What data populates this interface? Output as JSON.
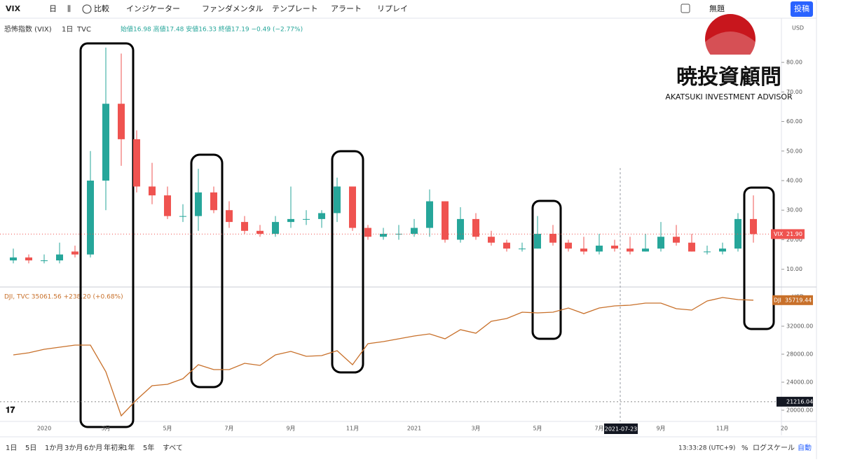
{
  "toolbar": {
    "symbol": "VIX",
    "interval": "日",
    "compare": "比較",
    "indicators": "インジケーター",
    "fundamental": "ファンダメンタル",
    "template": "テンプレート",
    "alert": "アラート",
    "replay": "リプレイ",
    "layout": "無題",
    "publish": "投稿"
  },
  "legend": {
    "title": "恐怖指数 (VIX)",
    "interval": "1日",
    "source": "TVC",
    "ohlc": "始値16.98 高値17.48 安値16.33 終値17.19 −0.49 (−2.77%)",
    "dji": "DJI, TVC 35061.56 +238.20 (+0.68%)"
  },
  "logo": {
    "kanji": "暁投資顧問",
    "name": "AKATSUKI INVESTMENT ADVISOR"
  },
  "price_labels": {
    "currency_top": "USD",
    "currency_bottom": "USD",
    "vix_name": "VIX",
    "vix_last": "21.90",
    "dji_name": "DJI",
    "dji_last": "35719.44",
    "marker": "21216.04",
    "crosshair_date": "2021-07-23"
  },
  "chart_data": [
    {
      "type": "candlestick",
      "name": "VIX",
      "categories": [
        null,
        null,
        "2020",
        null,
        null,
        null,
        "3月",
        null,
        null,
        null,
        "5月",
        null,
        null,
        null,
        "7月",
        null,
        null,
        null,
        "9月",
        null,
        null,
        null,
        "11月",
        null,
        null,
        null,
        "2021",
        null,
        null,
        null,
        "3月",
        null,
        null,
        null,
        "5月",
        null,
        null,
        null,
        "7月",
        null,
        null,
        null,
        "9月",
        null,
        null,
        null,
        "11月",
        null,
        null,
        null,
        "20"
      ],
      "open": [
        13,
        14,
        13,
        13,
        16,
        15,
        40,
        66,
        54,
        38,
        35,
        28,
        28,
        36,
        30,
        26,
        23,
        22,
        26,
        27,
        27,
        29,
        38,
        24,
        21,
        22,
        22,
        24,
        33,
        20,
        27,
        21,
        19,
        17,
        17,
        22,
        19,
        17,
        16,
        18,
        17,
        16,
        17,
        21,
        19,
        16,
        16,
        17,
        27,
        null,
        null
      ],
      "high": [
        17,
        15,
        15,
        19,
        18,
        50,
        85,
        83,
        57,
        46,
        38,
        32,
        44,
        38,
        33,
        28,
        25,
        28,
        38,
        30,
        30,
        41,
        38,
        25,
        24,
        25,
        27,
        37,
        33,
        31,
        29,
        23,
        20,
        19,
        28,
        25,
        20,
        21,
        22,
        20,
        21,
        22,
        26,
        25,
        22,
        18,
        19,
        29,
        35,
        null,
        null
      ],
      "low": [
        12,
        12,
        12,
        12,
        14,
        14,
        30,
        45,
        36,
        32,
        27,
        26,
        23,
        29,
        24,
        22,
        21,
        21,
        24,
        25,
        24,
        26,
        23,
        20,
        20,
        20,
        21,
        21,
        19,
        19,
        20,
        18,
        16,
        16,
        17,
        18,
        16,
        15,
        15,
        16,
        15,
        16,
        16,
        18,
        16,
        15,
        15,
        16,
        19,
        null,
        null
      ],
      "close": [
        14,
        13,
        13,
        15,
        15,
        40,
        66,
        54,
        38,
        35,
        28,
        28,
        36,
        30,
        26,
        23,
        22,
        26,
        27,
        27,
        29,
        38,
        24,
        21,
        22,
        22,
        24,
        33,
        20,
        27,
        21,
        19,
        17,
        17,
        22,
        19,
        17,
        16,
        18,
        17,
        16,
        17,
        21,
        19,
        16,
        16,
        17,
        27,
        21.9,
        null,
        null
      ],
      "up_color": "#26a69a",
      "down_color": "#ef5350",
      "ylim": [
        4,
        94
      ],
      "yticks": [
        {
          "value": 10,
          "label": "10.00"
        },
        {
          "value": 20,
          "label": "20.00"
        },
        {
          "value": 30,
          "label": "30.00"
        },
        {
          "value": 40,
          "label": "40.00"
        },
        {
          "value": 50,
          "label": "50.00"
        },
        {
          "value": 60,
          "label": "60.00"
        },
        {
          "value": 70,
          "label": "70.00"
        },
        {
          "value": 80,
          "label": "80.00"
        }
      ]
    },
    {
      "type": "line",
      "name": "DJI",
      "color": "#c8702a",
      "values": [
        27900,
        28200,
        28700,
        29000,
        29300,
        29300,
        25500,
        19200,
        21500,
        23500,
        23700,
        24500,
        26500,
        25800,
        25800,
        26700,
        26400,
        27900,
        28400,
        27700,
        27800,
        28500,
        26500,
        29500,
        29800,
        30200,
        30600,
        30900,
        30200,
        31500,
        31000,
        32700,
        33100,
        34000,
        33900,
        34000,
        34600,
        33800,
        34600,
        34900,
        35000,
        35300,
        35300,
        34500,
        34300,
        35600,
        36100,
        35800,
        35719.44,
        null,
        null
      ],
      "marker": 21216.04,
      "ylim": [
        18400,
        36800
      ],
      "yticks": [
        {
          "value": 20000,
          "label": "20000.00"
        },
        {
          "value": 24000,
          "label": "24000.00"
        },
        {
          "value": 28000,
          "label": "28000.00"
        },
        {
          "value": 32000,
          "label": "32000.00"
        }
      ]
    }
  ],
  "bottom_bar": {
    "ranges": [
      "1日",
      "5日",
      "1か月",
      "3か月",
      "6か月",
      "年初来",
      "1年",
      "5年",
      "すべて"
    ],
    "clock": "13:33:28 (UTC+9)",
    "percent": "%",
    "log": "ログスケール",
    "auto": "自動"
  }
}
